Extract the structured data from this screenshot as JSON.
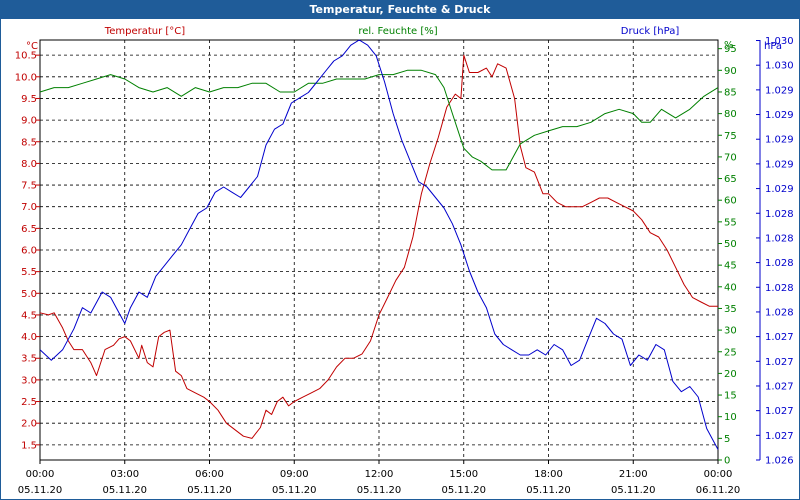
{
  "window": {
    "title": "Temperatur, Feuchte & Druck"
  },
  "colors": {
    "temperature": "#c00000",
    "humidity": "#008000",
    "pressure": "#0000cc",
    "titlebar": "#1f5c99"
  },
  "chart_data": {
    "type": "line",
    "title": "Temperatur, Feuchte & Druck",
    "grid": true,
    "x_label_lines": [
      [
        "00:00",
        "05.11.20"
      ],
      [
        "03:00",
        "05.11.20"
      ],
      [
        "06:00",
        "05.11.20"
      ],
      [
        "09:00",
        "05.11.20"
      ],
      [
        "12:00",
        "05.11.20"
      ],
      [
        "15:00",
        "05.11.20"
      ],
      [
        "18:00",
        "05.11.20"
      ],
      [
        "21:00",
        "05.11.20"
      ],
      [
        "00:00",
        "06.11.20"
      ]
    ],
    "xlim": [
      0,
      24
    ],
    "axes": {
      "temperature": {
        "label": "Temperatur [°C]",
        "unit": "°C",
        "ylim": [
          1.15,
          10.85
        ],
        "ticks": [
          "1.5",
          "2.0",
          "2.5",
          "3.0",
          "3.5",
          "4.0",
          "4.5",
          "5.0",
          "5.5",
          "6.0",
          "6.5",
          "7.0",
          "7.5",
          "8.0",
          "8.5",
          "9.0",
          "9.5",
          "10.0",
          "10.5"
        ],
        "tick_values": [
          1.5,
          2.0,
          2.5,
          3.0,
          3.5,
          4.0,
          4.5,
          5.0,
          5.5,
          6.0,
          6.5,
          7.0,
          7.5,
          8.0,
          8.5,
          9.0,
          9.5,
          10.0,
          10.5
        ]
      },
      "humidity": {
        "label": "rel. Feuchte [%]",
        "unit": "%",
        "ylim": [
          0,
          97
        ],
        "ticks": [
          "0",
          "5",
          "10",
          "15",
          "20",
          "25",
          "30",
          "35",
          "40",
          "45",
          "50",
          "55",
          "60",
          "65",
          "70",
          "75",
          "80",
          "85",
          "90",
          "95"
        ],
        "tick_values": [
          0,
          5,
          10,
          15,
          20,
          25,
          30,
          35,
          40,
          45,
          50,
          55,
          60,
          65,
          70,
          75,
          80,
          85,
          90,
          95
        ]
      },
      "pressure": {
        "label": "Druck [hPa]",
        "unit": "hPa",
        "ylim": [
          1026.0,
          1030.0
        ],
        "ticks": [
          "1.026",
          "1.027",
          "1.027",
          "1.027",
          "1.027",
          "1.027",
          "1.028",
          "1.028",
          "1.028",
          "1.028",
          "1.028",
          "1.029",
          "1.029",
          "1.029",
          "1.029",
          "1.029",
          "1.030",
          "1.030"
        ],
        "tick_values": [
          1026.0,
          1026.235,
          1026.47,
          1026.705,
          1026.94,
          1027.175,
          1027.41,
          1027.645,
          1027.88,
          1028.115,
          1028.35,
          1028.585,
          1028.82,
          1029.055,
          1029.29,
          1029.525,
          1029.76,
          1029.995
        ]
      }
    },
    "series": [
      {
        "name": "Temperatur [°C]",
        "axis": "temperature",
        "x": [
          0,
          0.3,
          0.5,
          0.8,
          1.0,
          1.2,
          1.5,
          1.8,
          2.0,
          2.3,
          2.6,
          2.8,
          3.0,
          3.2,
          3.5,
          3.6,
          3.8,
          4.0,
          4.2,
          4.4,
          4.6,
          4.8,
          5.0,
          5.2,
          5.5,
          5.8,
          6.0,
          6.3,
          6.6,
          6.9,
          7.2,
          7.5,
          7.8,
          8.0,
          8.2,
          8.4,
          8.6,
          8.8,
          9.0,
          9.3,
          9.6,
          9.9,
          10.2,
          10.5,
          10.8,
          11.1,
          11.4,
          11.7,
          12.0,
          12.3,
          12.6,
          12.9,
          13.2,
          13.5,
          13.8,
          14.1,
          14.4,
          14.7,
          14.9,
          15.0,
          15.2,
          15.5,
          15.8,
          16.0,
          16.2,
          16.5,
          16.8,
          17.0,
          17.2,
          17.5,
          17.8,
          18.0,
          18.3,
          18.6,
          18.9,
          19.2,
          19.5,
          19.8,
          20.1,
          20.4,
          20.7,
          21.0,
          21.3,
          21.6,
          21.9,
          22.2,
          22.5,
          22.8,
          23.1,
          23.4,
          23.7,
          24.0
        ],
        "values": [
          4.55,
          4.5,
          4.55,
          4.2,
          3.9,
          3.7,
          3.7,
          3.4,
          3.1,
          3.7,
          3.8,
          3.95,
          4.0,
          3.9,
          3.5,
          3.8,
          3.4,
          3.3,
          4.0,
          4.1,
          4.15,
          3.2,
          3.1,
          2.8,
          2.7,
          2.6,
          2.5,
          2.3,
          2.0,
          1.85,
          1.7,
          1.65,
          1.9,
          2.3,
          2.2,
          2.5,
          2.6,
          2.4,
          2.5,
          2.6,
          2.7,
          2.8,
          3.0,
          3.3,
          3.5,
          3.5,
          3.6,
          3.9,
          4.5,
          4.9,
          5.3,
          5.6,
          6.3,
          7.3,
          8.0,
          8.6,
          9.3,
          9.6,
          9.5,
          10.5,
          10.1,
          10.1,
          10.2,
          10.0,
          10.3,
          10.2,
          9.5,
          8.4,
          7.9,
          7.8,
          7.3,
          7.3,
          7.1,
          7.0,
          7.0,
          7.0,
          7.1,
          7.2,
          7.2,
          7.1,
          7.0,
          6.9,
          6.7,
          6.4,
          6.3,
          6.0,
          5.6,
          5.2,
          4.9,
          4.8,
          4.7,
          4.7
        ]
      },
      {
        "name": "rel. Feuchte [%]",
        "axis": "humidity",
        "x": [
          0,
          0.5,
          1.0,
          1.5,
          2.0,
          2.5,
          3.0,
          3.5,
          4.0,
          4.5,
          5.0,
          5.5,
          6.0,
          6.5,
          7.0,
          7.5,
          8.0,
          8.5,
          9.0,
          9.5,
          10.0,
          10.5,
          11.0,
          11.5,
          12.0,
          12.5,
          13.0,
          13.5,
          14.0,
          14.3,
          14.6,
          15.0,
          15.3,
          15.6,
          16.0,
          16.5,
          17.0,
          17.5,
          18.0,
          18.5,
          19.0,
          19.5,
          20.0,
          20.5,
          21.0,
          21.3,
          21.6,
          22.0,
          22.5,
          23.0,
          23.5,
          24.0
        ],
        "values": [
          85,
          86,
          86,
          87,
          88,
          89,
          88,
          86,
          85,
          86,
          84,
          86,
          85,
          86,
          86,
          87,
          87,
          85,
          85,
          87,
          87,
          88,
          88,
          88,
          89,
          89,
          90,
          90,
          89,
          86,
          80,
          72,
          70,
          69,
          67,
          67,
          73,
          75,
          76,
          77,
          77,
          78,
          80,
          81,
          80,
          78,
          78,
          81,
          79,
          81,
          84,
          86
        ]
      },
      {
        "name": "Druck [hPa]",
        "axis": "pressure",
        "x": [
          0,
          0.4,
          0.8,
          1.2,
          1.5,
          1.8,
          2.2,
          2.5,
          2.8,
          3.0,
          3.2,
          3.5,
          3.8,
          4.1,
          4.4,
          4.7,
          5.0,
          5.3,
          5.6,
          5.9,
          6.2,
          6.5,
          6.8,
          7.1,
          7.4,
          7.7,
          8.0,
          8.3,
          8.6,
          8.9,
          9.2,
          9.5,
          9.8,
          10.1,
          10.4,
          10.7,
          11.0,
          11.3,
          11.6,
          11.9,
          12.2,
          12.5,
          12.8,
          13.1,
          13.4,
          13.7,
          14.0,
          14.3,
          14.6,
          14.9,
          15.2,
          15.5,
          15.8,
          16.1,
          16.4,
          16.7,
          17.0,
          17.3,
          17.6,
          17.9,
          18.2,
          18.5,
          18.8,
          19.1,
          19.4,
          19.7,
          20.0,
          20.3,
          20.6,
          20.9,
          21.2,
          21.5,
          21.8,
          22.1,
          22.4,
          22.7,
          23.0,
          23.3,
          23.6,
          24.0
        ],
        "values": [
          1027.05,
          1026.95,
          1027.05,
          1027.25,
          1027.45,
          1027.4,
          1027.6,
          1027.55,
          1027.4,
          1027.3,
          1027.45,
          1027.6,
          1027.55,
          1027.75,
          1027.85,
          1027.95,
          1028.05,
          1028.2,
          1028.35,
          1028.4,
          1028.55,
          1028.6,
          1028.55,
          1028.5,
          1028.6,
          1028.7,
          1029.0,
          1029.15,
          1029.2,
          1029.4,
          1029.45,
          1029.5,
          1029.6,
          1029.7,
          1029.8,
          1029.85,
          1029.95,
          1030.0,
          1029.95,
          1029.85,
          1029.6,
          1029.3,
          1029.05,
          1028.85,
          1028.65,
          1028.6,
          1028.5,
          1028.4,
          1028.25,
          1028.05,
          1027.8,
          1027.6,
          1027.45,
          1027.2,
          1027.1,
          1027.05,
          1027.0,
          1027.0,
          1027.05,
          1027.0,
          1027.1,
          1027.05,
          1026.9,
          1026.95,
          1027.15,
          1027.35,
          1027.3,
          1027.2,
          1027.15,
          1026.9,
          1027.0,
          1026.95,
          1027.1,
          1027.05,
          1026.75,
          1026.65,
          1026.7,
          1026.6,
          1026.3,
          1026.1
        ]
      }
    ]
  }
}
